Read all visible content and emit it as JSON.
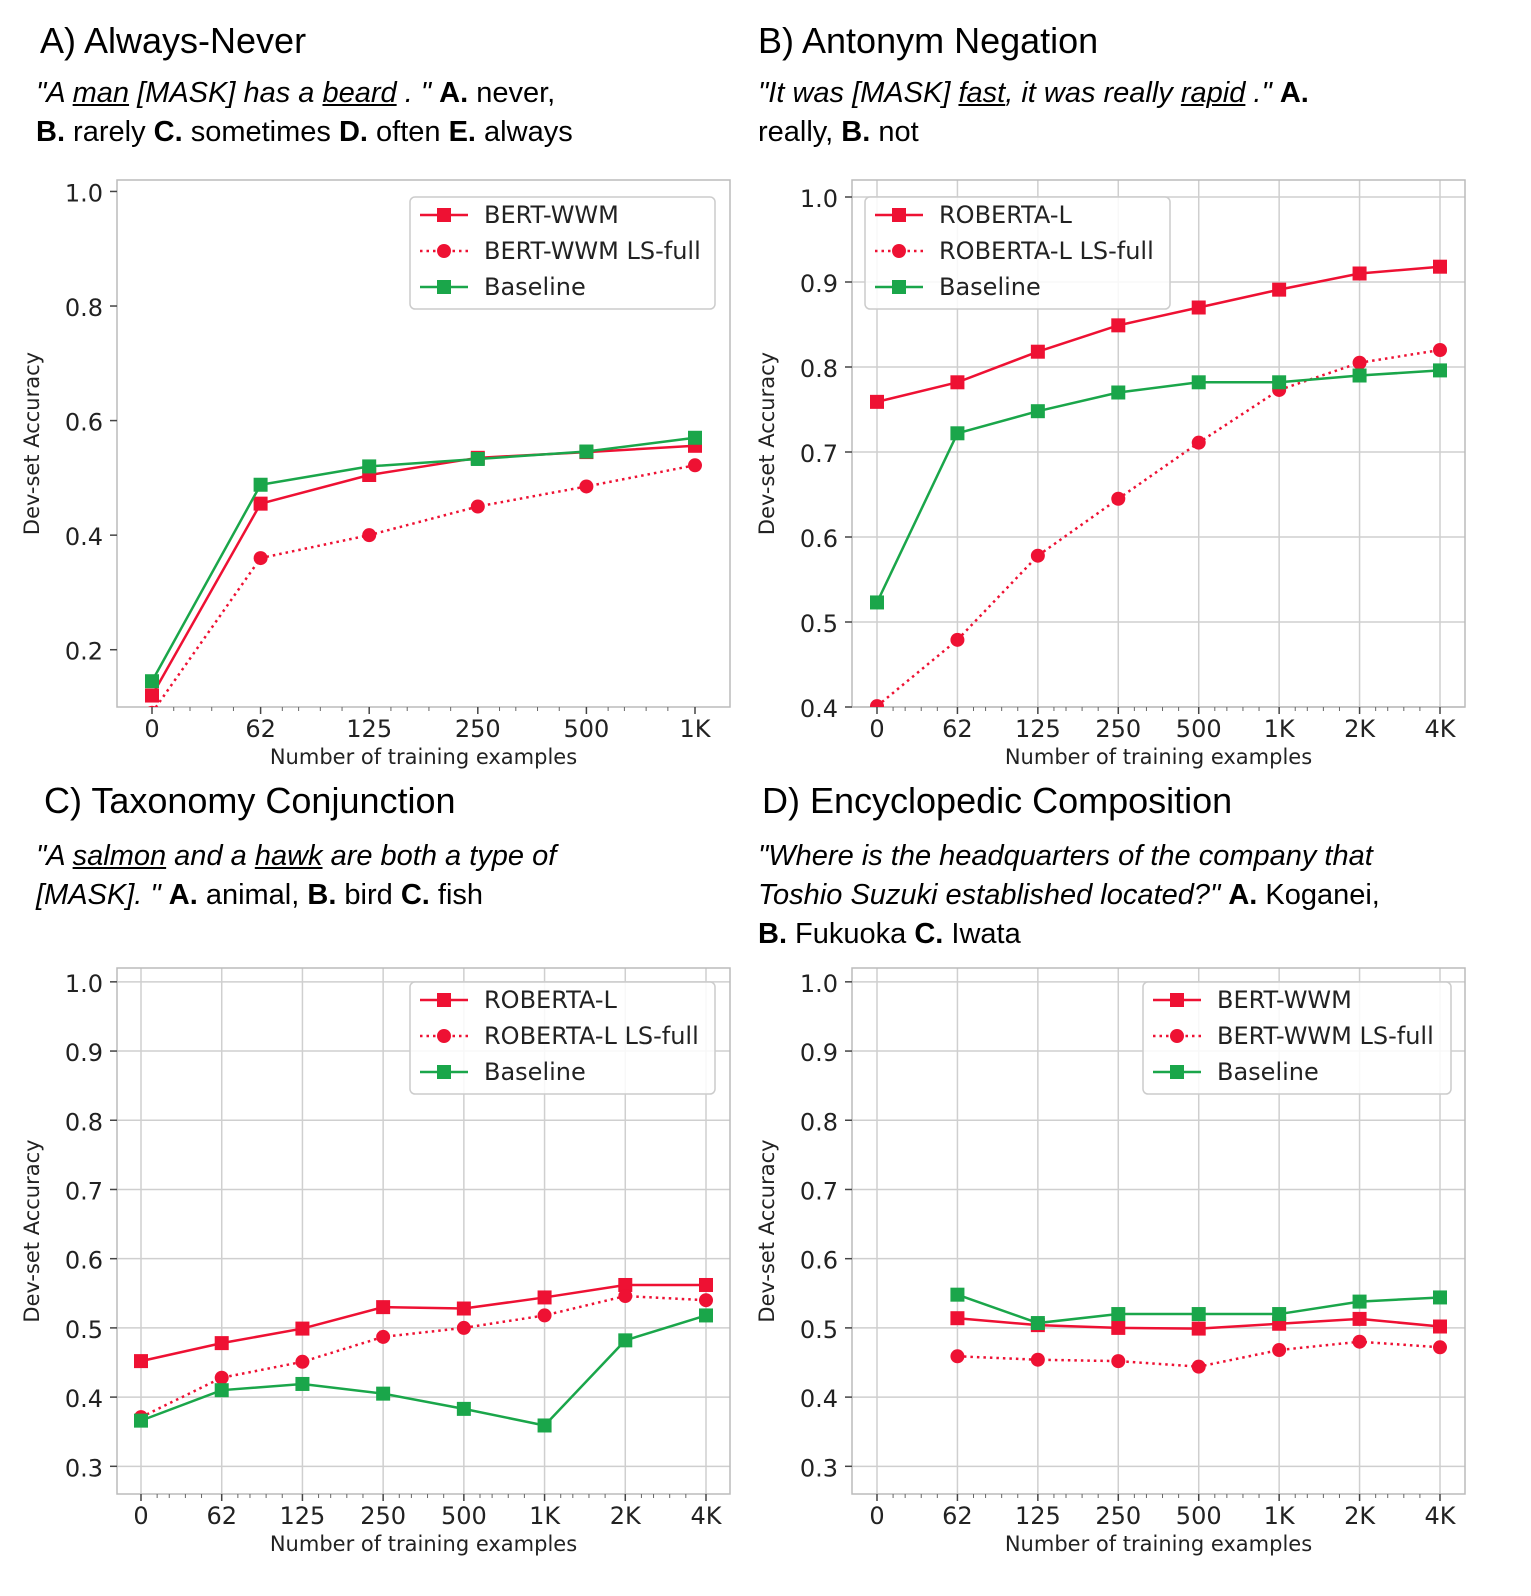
{
  "colors": {
    "red": "#ee1133",
    "green": "#1aa64a",
    "grid": "#cfcfcf"
  },
  "panels": [
    {
      "title": "A) Always-Never",
      "desc": [
        {
          "t": "\"A ",
          "s": "i"
        },
        {
          "t": "man",
          "s": "iu"
        },
        {
          "t": " [MASK] has a  ",
          "s": "i"
        },
        {
          "t": "beard",
          "s": "iu"
        },
        {
          "t": " . \" ",
          "s": "i"
        },
        {
          "t": "A.",
          "s": "b"
        },
        {
          "t": " never, ",
          "s": ""
        },
        {
          "br": true
        },
        {
          "t": "B.",
          "s": "b"
        },
        {
          "t": " rarely ",
          "s": ""
        },
        {
          "t": "C.",
          "s": "b"
        },
        {
          "t": " sometimes ",
          "s": ""
        },
        {
          "t": "D.",
          "s": "b"
        },
        {
          "t": " often ",
          "s": ""
        },
        {
          "t": "E.",
          "s": "b"
        },
        {
          "t": " always",
          "s": ""
        }
      ]
    },
    {
      "title": "B) Antonym Negation",
      "desc": [
        {
          "t": "\"It was [MASK] ",
          "s": "i"
        },
        {
          "t": "fast",
          "s": "iu"
        },
        {
          "t": ", it was really ",
          "s": "i"
        },
        {
          "t": "rapid",
          "s": "iu"
        },
        {
          "t": " .\" ",
          "s": "i"
        },
        {
          "t": "A.",
          "s": "b"
        },
        {
          "br": true
        },
        {
          "t": "really, ",
          "s": ""
        },
        {
          "t": "B.",
          "s": "b"
        },
        {
          "t": " not",
          "s": ""
        }
      ]
    },
    {
      "title": "C) Taxonomy Conjunction",
      "desc": [
        {
          "t": "\"A ",
          "s": "i"
        },
        {
          "t": "salmon",
          "s": "iu"
        },
        {
          "t": " and a ",
          "s": "i"
        },
        {
          "t": "hawk",
          "s": "iu"
        },
        {
          "t": " are both a type of",
          "s": "i"
        },
        {
          "br": true
        },
        {
          "t": "[MASK]. \" ",
          "s": "i"
        },
        {
          "t": "A.",
          "s": "b"
        },
        {
          "t": " animal, ",
          "s": ""
        },
        {
          "t": "B.",
          "s": "b"
        },
        {
          "t": " bird ",
          "s": ""
        },
        {
          "t": "C.",
          "s": "b"
        },
        {
          "t": " fish",
          "s": ""
        }
      ]
    },
    {
      "title": "D) Encyclopedic Composition",
      "desc": [
        {
          "t": "\"Where is the headquarters of the company that",
          "s": "i"
        },
        {
          "br": true
        },
        {
          "t": "Toshio Suzuki established located?\" ",
          "s": "i"
        },
        {
          "t": "A.",
          "s": "b"
        },
        {
          "t": " Koganei,",
          "s": ""
        },
        {
          "br": true
        },
        {
          "t": "B.",
          "s": "b"
        },
        {
          "t": " Fukuoka ",
          "s": ""
        },
        {
          "t": "C.",
          "s": "b"
        },
        {
          "t": " Iwata",
          "s": ""
        }
      ]
    }
  ],
  "chart_data": [
    {
      "type": "line",
      "xlabel": "Number of training examples",
      "ylabel": "Dev-set Accuracy",
      "categories": [
        "0",
        "62",
        "125",
        "250",
        "500",
        "1K"
      ],
      "ylim": [
        0.1,
        1.02
      ],
      "yticks": [
        "0.2",
        "0.4",
        "0.6",
        "0.8",
        "1.0"
      ],
      "grid": false,
      "legend": "top-right",
      "series": [
        {
          "name": "BERT-WWM",
          "style": "solid",
          "marker": "square",
          "color": "red",
          "values": [
            0.12,
            0.455,
            0.505,
            0.535,
            0.545,
            0.556
          ]
        },
        {
          "name": "BERT-WWM LS-full",
          "style": "dotted",
          "marker": "circle",
          "color": "red",
          "values": [
            0.09,
            0.36,
            0.4,
            0.45,
            0.485,
            0.522
          ]
        },
        {
          "name": "Baseline",
          "style": "solid",
          "marker": "square",
          "color": "green",
          "values": [
            0.145,
            0.488,
            0.52,
            0.533,
            0.546,
            0.57
          ]
        }
      ]
    },
    {
      "type": "line",
      "xlabel": "Number of training examples",
      "ylabel": "Dev-set Accuracy",
      "categories": [
        "0",
        "62",
        "125",
        "250",
        "500",
        "1K",
        "2K",
        "4K"
      ],
      "ylim": [
        0.4,
        1.02
      ],
      "yticks": [
        "0.4",
        "0.5",
        "0.6",
        "0.7",
        "0.8",
        "0.9",
        "1.0"
      ],
      "grid": true,
      "legend": "top-left",
      "series": [
        {
          "name": "ROBERTA-L",
          "style": "solid",
          "marker": "square",
          "color": "red",
          "values": [
            0.759,
            0.782,
            0.818,
            0.849,
            0.87,
            0.891,
            0.91,
            0.918
          ]
        },
        {
          "name": "ROBERTA-L LS-full",
          "style": "dotted",
          "marker": "circle",
          "color": "red",
          "values": [
            0.401,
            0.479,
            0.578,
            0.645,
            0.711,
            0.773,
            0.805,
            0.82
          ]
        },
        {
          "name": "Baseline",
          "style": "solid",
          "marker": "square",
          "color": "green",
          "values": [
            0.523,
            0.722,
            0.748,
            0.77,
            0.782,
            0.782,
            0.79,
            0.796
          ]
        }
      ]
    },
    {
      "type": "line",
      "xlabel": "Number of training examples",
      "ylabel": "Dev-set Accuracy",
      "categories": [
        "0",
        "62",
        "125",
        "250",
        "500",
        "1K",
        "2K",
        "4K"
      ],
      "ylim": [
        0.26,
        1.02
      ],
      "yticks": [
        "0.3",
        "0.4",
        "0.5",
        "0.6",
        "0.7",
        "0.8",
        "0.9",
        "1.0"
      ],
      "grid": true,
      "legend": "top-right",
      "series": [
        {
          "name": "ROBERTA-L",
          "style": "solid",
          "marker": "square",
          "color": "red",
          "values": [
            0.452,
            0.478,
            0.499,
            0.53,
            0.528,
            0.544,
            0.562,
            0.562
          ]
        },
        {
          "name": "ROBERTA-L LS-full",
          "style": "dotted",
          "marker": "circle",
          "color": "red",
          "values": [
            0.371,
            0.428,
            0.451,
            0.487,
            0.5,
            0.518,
            0.546,
            0.54
          ]
        },
        {
          "name": "Baseline",
          "style": "solid",
          "marker": "square",
          "color": "green",
          "values": [
            0.366,
            0.41,
            0.419,
            0.405,
            0.383,
            0.359,
            0.482,
            0.518
          ]
        }
      ]
    },
    {
      "type": "line",
      "xlabel": "Number of training examples",
      "ylabel": "Dev-set Accuracy",
      "categories": [
        "0",
        "62",
        "125",
        "250",
        "500",
        "1K",
        "2K",
        "4K"
      ],
      "ylim": [
        0.26,
        1.02
      ],
      "yticks": [
        "0.3",
        "0.4",
        "0.5",
        "0.6",
        "0.7",
        "0.8",
        "0.9",
        "1.0"
      ],
      "grid": true,
      "legend": "top-right",
      "series": [
        {
          "name": "BERT-WWM",
          "style": "solid",
          "marker": "square",
          "color": "red",
          "values": [
            null,
            0.514,
            0.504,
            0.5,
            0.499,
            0.506,
            0.513,
            0.502
          ]
        },
        {
          "name": "BERT-WWM LS-full",
          "style": "dotted",
          "marker": "circle",
          "color": "red",
          "values": [
            null,
            0.459,
            0.454,
            0.452,
            0.444,
            0.468,
            0.48,
            0.472
          ]
        },
        {
          "name": "Baseline",
          "style": "solid",
          "marker": "square",
          "color": "green",
          "values": [
            null,
            0.548,
            0.507,
            0.52,
            0.52,
            0.52,
            0.538,
            0.544
          ]
        }
      ]
    }
  ]
}
